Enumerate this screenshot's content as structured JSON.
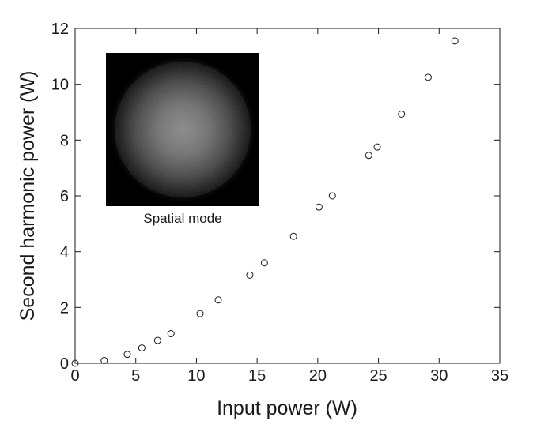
{
  "chart_data": {
    "type": "scatter",
    "xlabel": "Input power (W)",
    "ylabel": "Second harmonic power (W)",
    "xlim": [
      0,
      35
    ],
    "ylim": [
      0,
      12
    ],
    "xticks": [
      0,
      5,
      10,
      15,
      20,
      25,
      30,
      35
    ],
    "yticks": [
      0,
      2,
      4,
      6,
      8,
      10,
      12
    ],
    "grid": false,
    "marker": "open-circle",
    "series": [
      {
        "x": [
          0,
          2.4,
          4.3,
          5.5,
          6.8,
          7.9,
          10.3,
          11.8,
          14.4,
          15.6,
          18.0,
          20.1,
          21.2,
          24.2,
          24.9,
          26.9,
          29.1,
          31.3
        ],
        "y": [
          0.0,
          0.1,
          0.32,
          0.55,
          0.82,
          1.06,
          1.78,
          2.27,
          3.16,
          3.6,
          4.55,
          5.6,
          6.0,
          7.45,
          7.75,
          8.93,
          10.25,
          11.55
        ]
      }
    ],
    "inset": {
      "label": "Spatial mode",
      "type": "image",
      "content": "beam-profile-gaussian-spot"
    }
  }
}
